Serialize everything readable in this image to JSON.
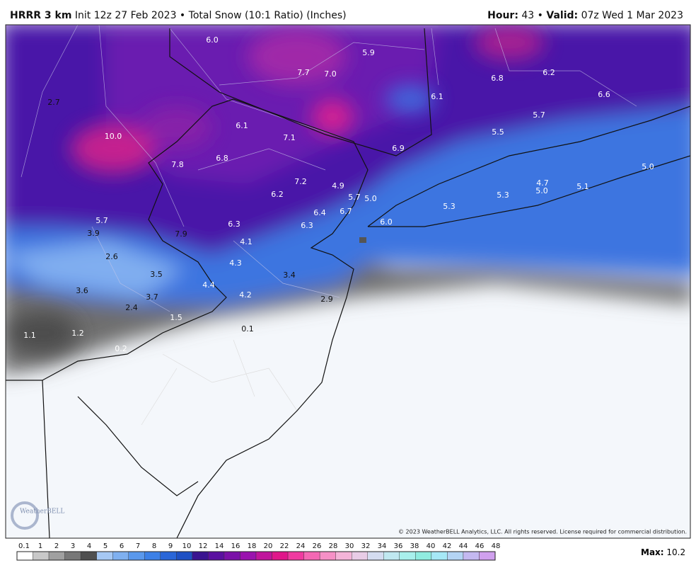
{
  "header": {
    "model": "HRRR 3 km",
    "description": "Init 12z 27 Feb 2023 • Total Snow (10:1 Ratio) (Inches)",
    "hour_label": "Hour:",
    "hour": "43",
    "separator": "•",
    "valid_label": "Valid:",
    "valid": "07z Wed 1 Mar 2023"
  },
  "map": {
    "labels": [
      "6.0",
      "5.9",
      "7.7",
      "7.0",
      "6.8",
      "6.2",
      "6.6",
      "6.1",
      "2.7",
      "6.1",
      "7.1",
      "5.7",
      "5.5",
      "10.0",
      "6.8",
      "6.9",
      "7.8",
      "7.2",
      "5.0",
      "4.9",
      "4.7",
      "6.2",
      "5.7",
      "5.0",
      "5.0",
      "5.1",
      "5.3",
      "5.3",
      "6.4",
      "6.7",
      "5.7",
      "6.0",
      "6.3",
      "6.3",
      "3.9",
      "7.9",
      "4.1",
      "2.6",
      "4.3",
      "3.5",
      "3.4",
      "4.4",
      "3.6",
      "4.2",
      "3.7",
      "2.9",
      "2.4",
      "1.5",
      "0.1",
      "1.2",
      "1.1",
      "0.2"
    ],
    "copyright": "© 2023 WeatherBELL Analytics, LLC. All rights reserved. License required for commercial distribution.",
    "logo": "WeatherBELL"
  },
  "colorbar": {
    "labels": [
      "0.1",
      "1",
      "2",
      "3",
      "4",
      "5",
      "6",
      "7",
      "8",
      "9",
      "10",
      "12",
      "14",
      "16",
      "18",
      "20",
      "22",
      "24",
      "26",
      "28",
      "30",
      "32",
      "34",
      "36",
      "38",
      "40",
      "42",
      "44",
      "46",
      "48"
    ]
  },
  "footer": {
    "max_label": "Max:",
    "max": "10.2"
  }
}
